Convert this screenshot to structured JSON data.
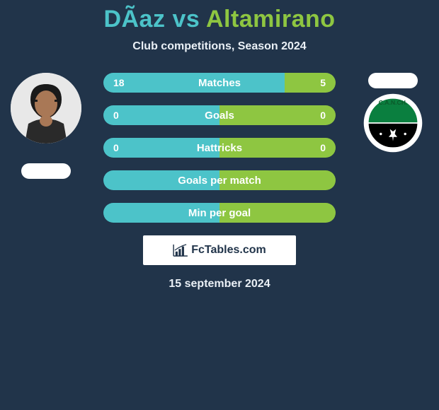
{
  "colors": {
    "background": "#21344a",
    "player1": "#4cc3c9",
    "player2": "#8ec641",
    "white": "#ffffff",
    "text": "#eaf0f6"
  },
  "header": {
    "player1_name": "DÃ­az",
    "vs_text": "vs",
    "player2_name": "Altamirano",
    "subtitle": "Club competitions, Season 2024"
  },
  "player2_badge": {
    "text_top": "C.A.N.CH.",
    "ring_color": "#ffffff",
    "inner_top": "#0a7f3f",
    "inner_bottom": "#000000"
  },
  "stats": [
    {
      "label": "Matches",
      "left_value": "18",
      "right_value": "5",
      "left_pct": 78,
      "right_pct": 22
    },
    {
      "label": "Goals",
      "left_value": "0",
      "right_value": "0",
      "left_pct": 50,
      "right_pct": 50
    },
    {
      "label": "Hattricks",
      "left_value": "0",
      "right_value": "0",
      "left_pct": 50,
      "right_pct": 50
    },
    {
      "label": "Goals per match",
      "left_value": "",
      "right_value": "",
      "left_pct": 50,
      "right_pct": 50
    },
    {
      "label": "Min per goal",
      "left_value": "",
      "right_value": "",
      "left_pct": 50,
      "right_pct": 50
    }
  ],
  "watermark": {
    "text": "FcTables.com"
  },
  "date": "15 september 2024"
}
